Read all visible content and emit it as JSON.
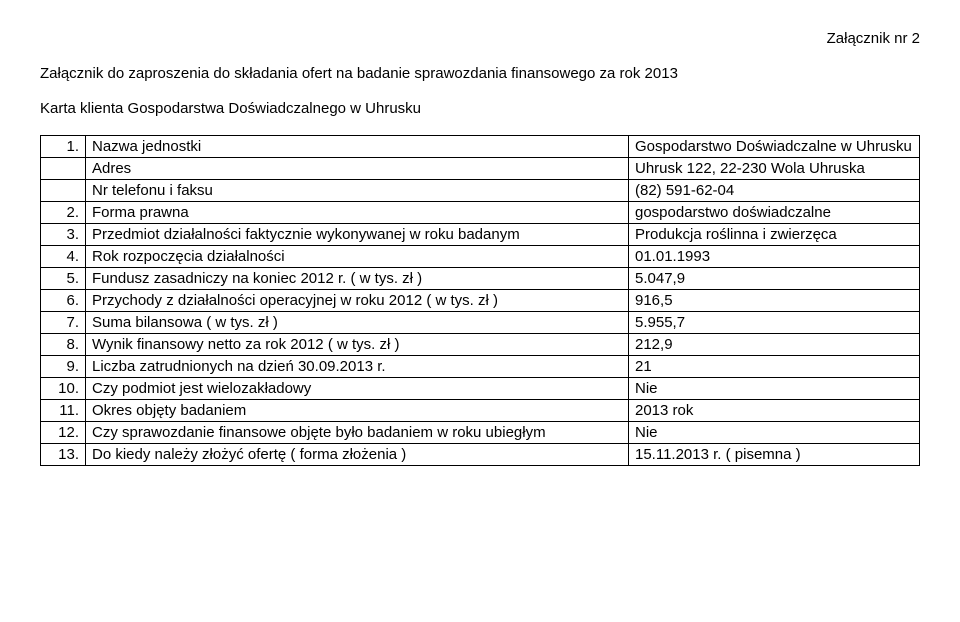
{
  "header": {
    "attachment": "Załącznik nr 2",
    "title": "Załącznik do zaproszenia do składania ofert na badanie sprawozdania finansowego za rok 2013",
    "client_card": "Karta klienta Gospodarstwa Doświadczalnego w Uhrusku"
  },
  "rows": [
    {
      "num": "1.",
      "label": "Nazwa jednostki",
      "value": "Gospodarstwo Doświadczalne w Uhrusku"
    },
    {
      "num": "",
      "label": "Adres",
      "value": "Uhrusk 122, 22-230 Wola Uhruska"
    },
    {
      "num": "",
      "label": "Nr telefonu i faksu",
      "value": "(82) 591-62-04"
    },
    {
      "num": "2.",
      "label": "Forma prawna",
      "value": "gospodarstwo doświadczalne"
    },
    {
      "num": "3.",
      "label": "Przedmiot działalności faktycznie wykonywanej w roku badanym",
      "value": "Produkcja roślinna i zwierzęca"
    },
    {
      "num": "4.",
      "label": "Rok rozpoczęcia działalności",
      "value": "01.01.1993"
    },
    {
      "num": "5.",
      "label": "Fundusz zasadniczy na koniec 2012 r. ( w tys. zł )",
      "value": "5.047,9"
    },
    {
      "num": "6.",
      "label": "Przychody z działalności operacyjnej w roku 2012 ( w tys. zł )",
      "value": "916,5"
    },
    {
      "num": "7.",
      "label": "Suma bilansowa ( w tys. zł )",
      "value": "5.955,7"
    },
    {
      "num": "8.",
      "label": "Wynik finansowy netto za rok 2012 ( w tys. zł )",
      "value": "212,9"
    },
    {
      "num": "9.",
      "label": "Liczba zatrudnionych na dzień 30.09.2013 r.",
      "value": "21"
    },
    {
      "num": "10.",
      "label": "Czy podmiot jest wielozakładowy",
      "value": "Nie"
    },
    {
      "num": "11.",
      "label": "Okres objęty badaniem",
      "value": "2013 rok"
    },
    {
      "num": "12.",
      "label": "Czy sprawozdanie finansowe objęte było badaniem w roku ubiegłym",
      "value": "Nie"
    },
    {
      "num": "13.",
      "label": "Do kiedy należy złożyć ofertę  ( forma złożenia )",
      "value": "15.11.2013 r. ( pisemna )"
    }
  ]
}
